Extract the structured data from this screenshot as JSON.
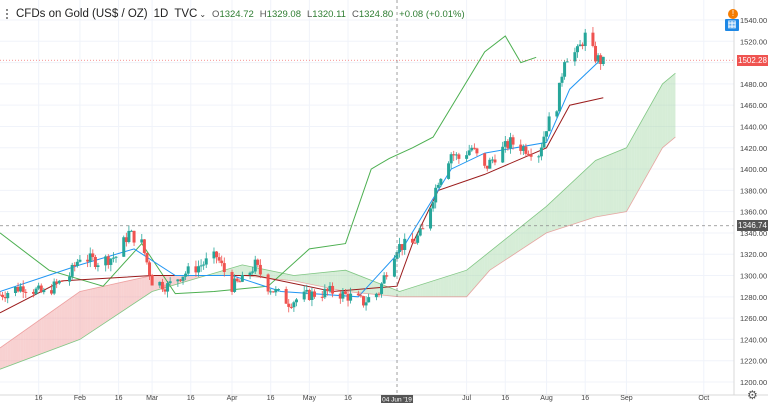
{
  "header": {
    "symbol": "CFDs on Gold (US$ / OZ)",
    "interval": "1D",
    "exchange": "TVC",
    "open_label": "O",
    "open": "1324.72",
    "high_label": "H",
    "high": "1329.08",
    "low_label": "L",
    "low": "1320.11",
    "close_label": "C",
    "close": "1324.80",
    "change": "+0.08 (+0.01%)"
  },
  "price_tags": {
    "last": "1502.28",
    "crosshair": "1346.74"
  },
  "crosshair_date": "04 Jun '19",
  "colors": {
    "up": "#26a69a",
    "down": "#ef5350",
    "tenkan": "#2196f3",
    "kijun": "#9b1c1c",
    "chikou": "#4caf50",
    "cloud_bull": "#a5d6a7",
    "cloud_bear": "#ef9a9a",
    "last_price_tag": "#ef5350",
    "crosshair_tag": "#555555"
  },
  "chart_data": {
    "type": "candlestick",
    "indicator": "Ichimoku Cloud",
    "y_axis": {
      "min": 1200,
      "max": 1540,
      "step": 20,
      "ticks": [
        "1540.00",
        "1520.00",
        "1500.00",
        "1480.00",
        "1460.00",
        "1440.00",
        "1420.00",
        "1400.00",
        "1380.00",
        "1360.00",
        "1340.00",
        "1320.00",
        "1300.00",
        "1280.00",
        "1260.00",
        "1240.00",
        "1220.00",
        "1200.00"
      ]
    },
    "x_axis": {
      "ticks": [
        "16",
        "Feb",
        "16",
        "Mar",
        "16",
        "Apr",
        "16",
        "May",
        "16",
        "Jul",
        "16",
        "Aug",
        "16",
        "Sep",
        "Oct"
      ],
      "tick_dates": [
        "2019-01-16",
        "2019-02-01",
        "2019-02-16",
        "2019-03-01",
        "2019-03-16",
        "2019-04-01",
        "2019-04-16",
        "2019-05-01",
        "2019-05-16",
        "2019-07-01",
        "2019-07-16",
        "2019-08-01",
        "2019-08-16",
        "2019-09-01",
        "2019-10-01"
      ],
      "start": "2019-01-01",
      "end": "2019-10-10"
    },
    "candles_anchor_close": [
      [
        "2019-01-01",
        1282
      ],
      [
        "2019-01-10",
        1290
      ],
      [
        "2019-01-18",
        1283
      ],
      [
        "2019-01-28",
        1300
      ],
      [
        "2019-02-01",
        1318
      ],
      [
        "2019-02-08",
        1313
      ],
      [
        "2019-02-15",
        1318
      ],
      [
        "2019-02-20",
        1340
      ],
      [
        "2019-02-25",
        1330
      ],
      [
        "2019-03-01",
        1295
      ],
      [
        "2019-03-07",
        1290
      ],
      [
        "2019-03-12",
        1300
      ],
      [
        "2019-03-20",
        1310
      ],
      [
        "2019-03-26",
        1318
      ],
      [
        "2019-04-01",
        1290
      ],
      [
        "2019-04-05",
        1295
      ],
      [
        "2019-04-10",
        1310
      ],
      [
        "2019-04-15",
        1290
      ],
      [
        "2019-04-23",
        1275
      ],
      [
        "2019-05-01",
        1282
      ],
      [
        "2019-05-10",
        1285
      ],
      [
        "2019-05-17",
        1280
      ],
      [
        "2019-05-22",
        1275
      ],
      [
        "2019-05-28",
        1285
      ],
      [
        "2019-05-31",
        1305
      ],
      [
        "2019-06-04",
        1327
      ],
      [
        "2019-06-10",
        1330
      ],
      [
        "2019-06-14",
        1342
      ],
      [
        "2019-06-20",
        1390
      ],
      [
        "2019-06-25",
        1415
      ],
      [
        "2019-06-28",
        1410
      ],
      [
        "2019-07-03",
        1420
      ],
      [
        "2019-07-08",
        1400
      ],
      [
        "2019-07-12",
        1412
      ],
      [
        "2019-07-18",
        1425
      ],
      [
        "2019-07-23",
        1420
      ],
      [
        "2019-07-29",
        1415
      ],
      [
        "2019-08-01",
        1440
      ],
      [
        "2019-08-05",
        1460
      ],
      [
        "2019-08-08",
        1505
      ],
      [
        "2019-08-13",
        1510
      ],
      [
        "2019-08-16",
        1525
      ],
      [
        "2019-08-20",
        1505
      ],
      [
        "2019-08-23",
        1500
      ]
    ],
    "tenkan_sen": [
      [
        "2019-01-01",
        1285
      ],
      [
        "2019-02-01",
        1310
      ],
      [
        "2019-02-22",
        1325
      ],
      [
        "2019-03-10",
        1300
      ],
      [
        "2019-04-01",
        1300
      ],
      [
        "2019-04-20",
        1285
      ],
      [
        "2019-05-20",
        1280
      ],
      [
        "2019-06-06",
        1325
      ],
      [
        "2019-06-25",
        1400
      ],
      [
        "2019-07-08",
        1415
      ],
      [
        "2019-08-01",
        1425
      ],
      [
        "2019-08-10",
        1475
      ],
      [
        "2019-08-23",
        1505
      ]
    ],
    "kijun_sen": [
      [
        "2019-01-01",
        1265
      ],
      [
        "2019-01-25",
        1295
      ],
      [
        "2019-03-01",
        1300
      ],
      [
        "2019-04-10",
        1300
      ],
      [
        "2019-05-10",
        1285
      ],
      [
        "2019-06-04",
        1290
      ],
      [
        "2019-06-10",
        1330
      ],
      [
        "2019-06-20",
        1380
      ],
      [
        "2019-07-08",
        1395
      ],
      [
        "2019-08-01",
        1420
      ],
      [
        "2019-08-10",
        1460
      ],
      [
        "2019-08-23",
        1467
      ]
    ],
    "chikou_span": [
      [
        "2019-01-01",
        1340
      ],
      [
        "2019-01-20",
        1305
      ],
      [
        "2019-02-10",
        1290
      ],
      [
        "2019-02-25",
        1330
      ],
      [
        "2019-03-10",
        1283
      ],
      [
        "2019-03-25",
        1285
      ],
      [
        "2019-04-15",
        1290
      ],
      [
        "2019-05-01",
        1325
      ],
      [
        "2019-05-15",
        1330
      ],
      [
        "2019-05-25",
        1400
      ],
      [
        "2019-06-01",
        1410
      ],
      [
        "2019-06-10",
        1420
      ],
      [
        "2019-06-18",
        1430
      ],
      [
        "2019-06-28",
        1470
      ],
      [
        "2019-07-08",
        1510
      ],
      [
        "2019-07-16",
        1525
      ],
      [
        "2019-07-22",
        1500
      ],
      [
        "2019-07-28",
        1505
      ]
    ],
    "senkou_span_a": [
      [
        "2019-01-01",
        1212
      ],
      [
        "2019-02-01",
        1240
      ],
      [
        "2019-03-01",
        1285
      ],
      [
        "2019-04-05",
        1310
      ],
      [
        "2019-04-25",
        1300
      ],
      [
        "2019-05-15",
        1305
      ],
      [
        "2019-06-05",
        1285
      ],
      [
        "2019-07-01",
        1305
      ],
      [
        "2019-08-01",
        1365
      ],
      [
        "2019-08-20",
        1408
      ],
      [
        "2019-09-01",
        1420
      ],
      [
        "2019-09-15",
        1480
      ],
      [
        "2019-09-20",
        1490
      ]
    ],
    "senkou_span_b": [
      [
        "2019-01-01",
        1232
      ],
      [
        "2019-02-01",
        1285
      ],
      [
        "2019-03-01",
        1300
      ],
      [
        "2019-04-05",
        1300
      ],
      [
        "2019-04-25",
        1295
      ],
      [
        "2019-05-15",
        1285
      ],
      [
        "2019-06-05",
        1280
      ],
      [
        "2019-07-01",
        1280
      ],
      [
        "2019-07-10",
        1305
      ],
      [
        "2019-08-01",
        1340
      ],
      [
        "2019-08-20",
        1355
      ],
      [
        "2019-09-01",
        1360
      ],
      [
        "2019-09-15",
        1420
      ],
      [
        "2019-09-20",
        1430
      ]
    ],
    "last_price": 1502.28,
    "crosshair": {
      "date": "2019-06-04",
      "price": 1346.74
    }
  }
}
